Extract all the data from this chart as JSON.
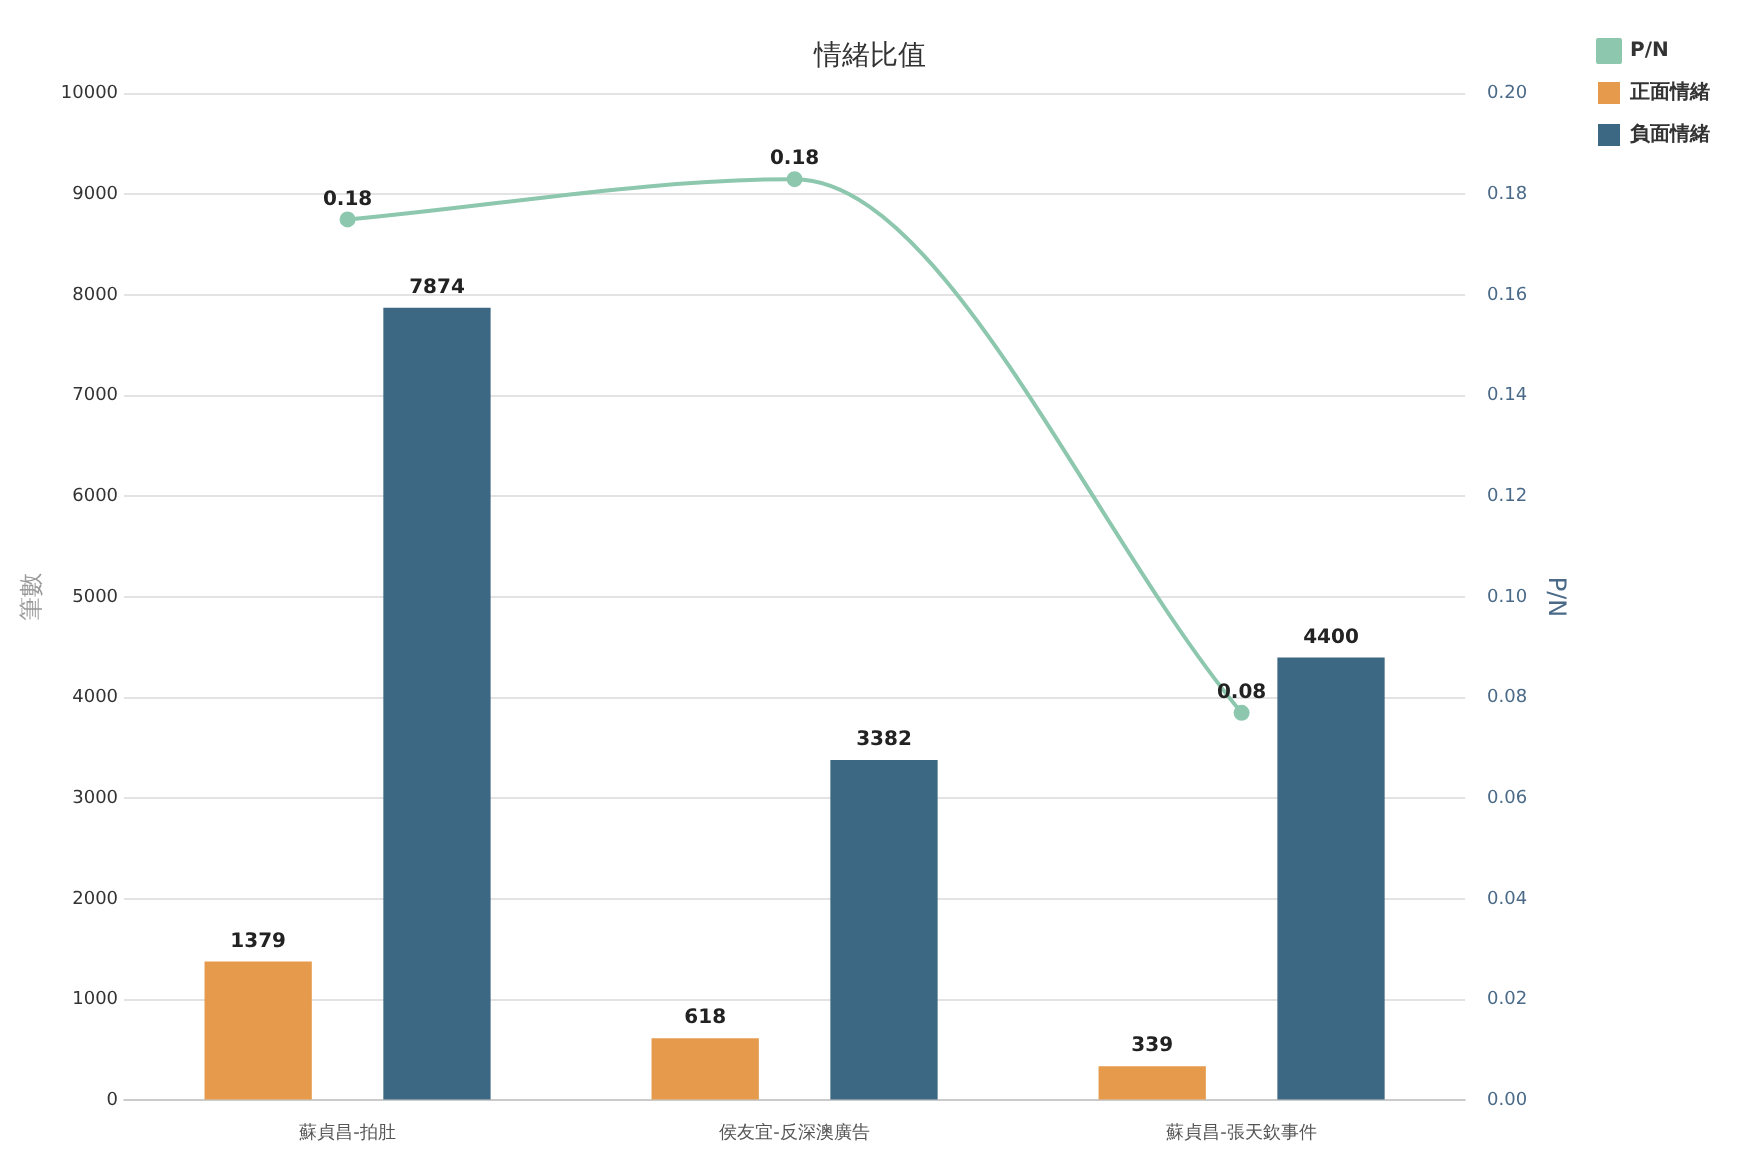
{
  "chart_data": {
    "type": "bar",
    "title": "情緒比值",
    "ylabel": "筆數",
    "y2label": "P/N",
    "categories": [
      "蘇貞昌-拍肚",
      "侯友宜-反深澳廣告",
      "蘇貞昌-張天欽事件"
    ],
    "series": [
      {
        "name": "正面情緒",
        "color": "#e59a4c",
        "values": [
          1379,
          618,
          339
        ]
      },
      {
        "name": "負面情緒",
        "color": "#3d6883",
        "values": [
          7874,
          3382,
          4400
        ]
      },
      {
        "name": "P/N",
        "type": "line",
        "axis": "y2",
        "color": "#8cc7ae",
        "values": [
          0.175,
          0.183,
          0.077
        ],
        "value_labels": [
          "0.18",
          "0.18",
          "0.08"
        ]
      }
    ],
    "ylim": [
      0,
      10000
    ],
    "yticks": [
      0,
      1000,
      2000,
      3000,
      4000,
      5000,
      6000,
      7000,
      8000,
      9000,
      10000
    ],
    "y2lim": [
      0,
      0.2
    ],
    "y2ticks": [
      {
        "value": 0,
        "label": "0.00"
      },
      {
        "value": 0.02,
        "label": "0.02"
      },
      {
        "value": 0.04,
        "label": "0.04"
      },
      {
        "value": 0.06,
        "label": "0.06"
      },
      {
        "value": 0.08,
        "label": "0.08"
      },
      {
        "value": 0.1,
        "label": "0.10"
      },
      {
        "value": 0.12,
        "label": "0.12"
      },
      {
        "value": 0.14,
        "label": "0.14"
      },
      {
        "value": 0.16,
        "label": "0.16"
      },
      {
        "value": 0.18,
        "label": "0.18"
      },
      {
        "value": 0.2,
        "label": "0.20"
      }
    ],
    "data_labels": true,
    "grid": "y",
    "legend": "top right",
    "marker": "circle",
    "line_style": "solid"
  }
}
